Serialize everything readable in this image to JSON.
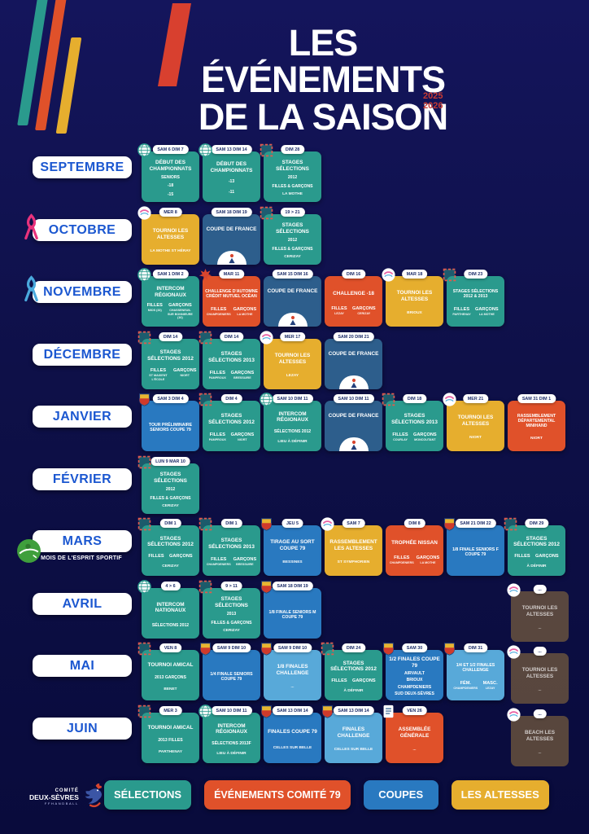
{
  "header": {
    "title_line1": "LES ÉVÉNEMENTS",
    "title_line2": "DE LA SAISON",
    "season_top": "2025",
    "season_bottom": "2026"
  },
  "colors": {
    "background": "#0e1048",
    "teal": "#2a9a8d",
    "orange": "#e0512a",
    "blue": "#2979c0",
    "darkblue": "#2d5e8c",
    "lightblue": "#58a9d9",
    "yellow": "#e6ae2e",
    "month_text": "#1b57d0",
    "badge_text": "#1d2d69",
    "accent_red": "#d8402f"
  },
  "months": [
    {
      "name": "SEPTEMBRE",
      "icon": null,
      "subtitle": null,
      "right_card": null,
      "cards": [
        {
          "color": "teal",
          "badge": "SAM 6 DIM 7",
          "logo": "intercom-globe",
          "title": "DÉBUT DES CHAMPIONNATS",
          "lines": [
            "SENIORS",
            "-18",
            "-15"
          ]
        },
        {
          "color": "teal",
          "badge": "SAM 13 DIM 14",
          "logo": "intercom-globe",
          "title": "DÉBUT DES CHAMPIONNATS",
          "lines": [
            "-13",
            "-11"
          ]
        },
        {
          "color": "teal",
          "badge": "DIM 28",
          "logo": "stage-frame",
          "title": "STAGES SÉLECTIONS",
          "lines": [
            "2012",
            "FILLES & GARÇONS"
          ],
          "footer": "LA MOTHE"
        }
      ]
    },
    {
      "name": "OCTOBRE",
      "icon": "ribbon-pink",
      "subtitle": null,
      "right_card": null,
      "cards": [
        {
          "color": "yellow",
          "badge": "MER 8",
          "logo": "altesses",
          "title": "TOURNOI LES ALTESSES",
          "footer": "LA MOTHE ST HÉRAY"
        },
        {
          "color": "darkblue",
          "badge": "SAM 18 DIM 19",
          "title": "COUPE DE FRANCE",
          "emblem": "coupe-de-france"
        },
        {
          "color": "teal",
          "badge": "19 > 21",
          "logo": "stage-frame",
          "title": "STAGES SÉLECTIONS",
          "lines": [
            "2012",
            "FILLES & GARÇONS"
          ],
          "footer": "CERIZAY"
        }
      ]
    },
    {
      "name": "NOVEMBRE",
      "icon": "ribbon-blue",
      "subtitle": null,
      "right_card": null,
      "cards": [
        {
          "color": "teal",
          "badge": "SAM 1 DIM 2",
          "logo": "intercom-globe",
          "title": "INTERCOM RÉGIONAUX",
          "cols": {
            "left": {
              "head": "FILLES",
              "sub": "MIOS (33)"
            },
            "right": {
              "head": "GARÇONS",
              "sub": "CHASSENEUIL SUR BONNIEURE (16)"
            }
          }
        },
        {
          "color": "orange",
          "badge": "MAR 11",
          "logo": "maple-leaf",
          "title": "CHALLENGE D'AUTOMNE CRÉDIT MUTUEL OCÉAN",
          "cols": {
            "left": {
              "head": "FILLES",
              "sub": "CHAMPDENIERS"
            },
            "right": {
              "head": "GARÇONS",
              "sub": "LA MOTHE"
            }
          }
        },
        {
          "color": "darkblue",
          "badge": "SAM 15 DIM 16",
          "title": "COUPE DE FRANCE",
          "emblem": "coupe-de-france"
        },
        {
          "color": "orange",
          "badge": "DIM 16",
          "title": "CHALLENGE -18",
          "cols": {
            "left": {
              "head": "FILLES",
              "sub": "LEZAY"
            },
            "right": {
              "head": "GARÇONS",
              "sub": "CERIZAY"
            }
          }
        },
        {
          "color": "yellow",
          "badge": "MAR 18",
          "logo": "altesses",
          "title": "TOURNOI LES ALTESSES",
          "footer": "BRIOUX"
        },
        {
          "color": "teal",
          "badge": "DIM 23",
          "logo": "stage-frame",
          "title": "STAGES SÉLECTIONS 2012 & 2013",
          "cols": {
            "left": {
              "head": "FILLES",
              "sub": "PARTHENAY"
            },
            "right": {
              "head": "GARÇONS",
              "sub": "LA MOTHE"
            }
          }
        }
      ]
    },
    {
      "name": "DÉCEMBRE",
      "icon": null,
      "subtitle": null,
      "right_card": null,
      "cards": [
        {
          "color": "teal",
          "badge": "DIM 14",
          "logo": "stage-frame",
          "title": "STAGES SÉLECTIONS 2012",
          "cols": {
            "left": {
              "head": "FILLES",
              "sub": "ST MAIXENT L'ÉCOLE"
            },
            "right": {
              "head": "GARÇONS",
              "sub": "NIORT"
            }
          }
        },
        {
          "color": "teal",
          "badge": "DIM 14",
          "logo": "stage-frame",
          "title": "STAGES SÉLECTIONS 2013",
          "cols": {
            "left": {
              "head": "FILLES",
              "sub": "PAMPROUX"
            },
            "right": {
              "head": "GARÇONS",
              "sub": "BRESSUIRE"
            }
          }
        },
        {
          "color": "yellow",
          "badge": "MER 17",
          "logo": "altesses",
          "title": "TOURNOI LES ALTESSES",
          "footer": "LEZAY"
        },
        {
          "color": "darkblue",
          "badge": "SAM 20 DIM 21",
          "title": "COUPE DE FRANCE",
          "emblem": "coupe-de-france"
        }
      ]
    },
    {
      "name": "JANVIER",
      "icon": null,
      "subtitle": null,
      "right_card": null,
      "cards": [
        {
          "color": "blue",
          "badge": "SAM 3 DIM 4",
          "logo": "crest",
          "title": "TOUR PRÉLIMINAIRE SENIORS COUPE 79"
        },
        {
          "color": "teal",
          "badge": "DIM 4",
          "logo": "stage-frame",
          "title": "STAGES SÉLECTIONS 2012",
          "cols": {
            "left": {
              "head": "FILLES",
              "sub": "PAMPROUX"
            },
            "right": {
              "head": "GARÇONS",
              "sub": "NIORT"
            }
          }
        },
        {
          "color": "teal",
          "badge": "SAM 10 DIM 11",
          "logo": "intercom-globe",
          "title": "INTERCOM RÉGIONAUX",
          "lines": [
            "SÉLECTIONS 2012"
          ],
          "footer": "LIEU À DÉFINIR"
        },
        {
          "color": "darkblue",
          "badge": "SAM 10 DIM 11",
          "title": "COUPE DE FRANCE",
          "emblem": "coupe-de-france"
        },
        {
          "color": "teal",
          "badge": "DIM 18",
          "logo": "stage-frame",
          "title": "STAGES SÉLECTIONS 2013",
          "cols": {
            "left": {
              "head": "FILLES",
              "sub": "COURLAY"
            },
            "right": {
              "head": "GARÇONS",
              "sub": "MONCOUTANT"
            }
          }
        },
        {
          "color": "yellow",
          "badge": "MER 21",
          "logo": "altesses",
          "title": "TOURNOI LES ALTESSES",
          "footer": "NIORT"
        },
        {
          "color": "orange",
          "badge": "SAM 31 DIM 1",
          "title": "RASSEMBLEMENT DÉPARTEMENTAL MINIHAND",
          "footer": "NIORT"
        }
      ]
    },
    {
      "name": "FÉVRIER",
      "icon": null,
      "subtitle": null,
      "right_card": null,
      "cards": [
        {
          "color": "teal",
          "badge": "LUN 9 MAR 10",
          "logo": "stage-frame",
          "title": "STAGES SÉLECTIONS",
          "lines": [
            "2012",
            "FILLES & GARÇONS"
          ],
          "footer": "CERIZAY"
        }
      ]
    },
    {
      "name": "MARS",
      "icon": "esprit-sportif",
      "subtitle": "MOIS DE L'ESPRIT SPORTIF",
      "right_card": null,
      "cards": [
        {
          "color": "teal",
          "badge": "DIM 1",
          "logo": "stage-frame",
          "title": "STAGES SÉLECTIONS 2012",
          "cols": {
            "left": {
              "head": "FILLES"
            },
            "right": {
              "head": "GARÇONS"
            }
          },
          "footer": "CERIZAY"
        },
        {
          "color": "teal",
          "badge": "DIM 1",
          "logo": "stage-frame",
          "title": "STAGES SÉLECTIONS 2013",
          "cols": {
            "left": {
              "head": "FILLES",
              "sub": "CHAMPDENIERS"
            },
            "right": {
              "head": "GARÇONS",
              "sub": "BRESSUIRE"
            }
          }
        },
        {
          "color": "blue",
          "badge": "JEU 5",
          "logo": "crest",
          "title": "TIRAGE AU SORT COUPE 79",
          "footer": "BESSINES"
        },
        {
          "color": "yellow",
          "badge": "SAM 7",
          "logo": "altesses",
          "title": "RASSEMBLEMENT LES ALTESSES",
          "footer": "ST SYMPHORIEN"
        },
        {
          "color": "orange",
          "badge": "DIM 8",
          "title": "TROPHÉE NISSAN",
          "cols": {
            "left": {
              "head": "FILLES",
              "sub": "CHAMPDENIERS"
            },
            "right": {
              "head": "GARÇONS",
              "sub": "LA MOTHE"
            }
          }
        },
        {
          "color": "blue",
          "badge": "SAM 21 DIM 22",
          "logo": "crest",
          "title": "1/8 FINALE SENIORS F COUPE 79"
        },
        {
          "color": "teal",
          "badge": "DIM 29",
          "logo": "stage-frame",
          "title": "STAGES SÉLECTIONS 2012",
          "cols": {
            "left": {
              "head": "FILLES"
            },
            "right": {
              "head": "GARÇONS"
            }
          },
          "footer": "À DÉFINIR"
        }
      ]
    },
    {
      "name": "AVRIL",
      "icon": null,
      "subtitle": null,
      "right_card": {
        "color": "muted",
        "badge": "...",
        "logo": "altesses",
        "title": "TOURNOI LES ALTESSES",
        "footer": "..."
      },
      "cards": [
        {
          "color": "teal",
          "badge": "4 > 6",
          "logo": "intercom-globe",
          "title": "INTERCOM NATIONAUX",
          "lines": [
            "SÉLECTIONS 2012"
          ]
        },
        {
          "color": "teal",
          "badge": "9 > 11",
          "logo": "stage-frame",
          "title": "STAGES SÉLECTIONS",
          "lines": [
            "2013",
            "FILLES & GARÇONS"
          ],
          "footer": "CERIZAY"
        },
        {
          "color": "blue",
          "badge": "SAM 18 DIM 19",
          "logo": "crest",
          "title": "1/8 FINALE SENIORS M COUPE 79"
        }
      ]
    },
    {
      "name": "MAI",
      "icon": null,
      "subtitle": null,
      "right_card": {
        "color": "muted",
        "badge": "...",
        "logo": "altesses",
        "title": "TOURNOI LES ALTESSES",
        "footer": "..."
      },
      "cards": [
        {
          "color": "teal",
          "badge": "VEN 8",
          "logo": "stage-frame",
          "title": "TOURNOI AMICAL",
          "lines": [
            "2013 GARÇONS"
          ],
          "footer": "BENET"
        },
        {
          "color": "blue",
          "badge": "SAM 9 DIM 10",
          "logo": "crest",
          "title": "1/4 FINALE SENIORS COUPE 79"
        },
        {
          "color": "lightblue",
          "badge": "SAM 9 DIM 10",
          "logo": "crest",
          "title": "1/8 FINALES CHALLENGE",
          "footer": "..."
        },
        {
          "color": "teal",
          "badge": "DIM 24",
          "logo": "stage-frame",
          "title": "STAGES SÉLECTIONS 2012",
          "cols": {
            "left": {
              "head": "FILLES"
            },
            "right": {
              "head": "GARÇONS"
            }
          },
          "footer": "À DÉFINIR"
        },
        {
          "color": "blue",
          "badge": "SAM 30",
          "logo": "crest",
          "title": "1/2 FINALES COUPE 79",
          "lines": [
            "AIRVAULT",
            "BRIOUX",
            "CHAMPDENIERS",
            "SUD DEUX-SÈVRES"
          ]
        },
        {
          "color": "lightblue",
          "badge": "DIM 31",
          "logo": "crest",
          "title": "1/4 ET 1/2 FINALES CHALLENGE",
          "cols": {
            "left": {
              "head": "FÉM.",
              "sub": "CHAMPDENIERS"
            },
            "right": {
              "head": "MASC.",
              "sub": "LEZAY"
            }
          }
        }
      ]
    },
    {
      "name": "JUIN",
      "icon": null,
      "subtitle": null,
      "right_card": {
        "color": "muted",
        "badge": "...",
        "logo": "altesses",
        "title": "BEACH LES ALTESSES",
        "footer": "..."
      },
      "cards": [
        {
          "color": "teal",
          "badge": "MER 3",
          "logo": "stage-frame",
          "title": "TOURNOI AMICAL",
          "lines": [
            "2013 FILLES"
          ],
          "footer": "PARTHENAY"
        },
        {
          "color": "teal",
          "badge": "SAM 10 DIM 11",
          "logo": "intercom-globe",
          "title": "INTERCOM RÉGIONAUX",
          "lines": [
            "SÉLECTIONS 2013F"
          ],
          "footer": "LIEU À DÉFINIR"
        },
        {
          "color": "blue",
          "badge": "SAM 13 DIM 14",
          "logo": "crest",
          "title": "FINALES COUPE 79",
          "footer": "CELLES SUR BELLE"
        },
        {
          "color": "lightblue",
          "badge": "SAM 13 DIM 14",
          "logo": "crest",
          "title": "FINALES CHALLENGE",
          "footer": "CELLES SUR BELLE"
        },
        {
          "color": "orange",
          "badge": "VEN 26",
          "logo": "document",
          "title": "ASSEMBLÉE GÉNÉRALE",
          "footer": "..."
        }
      ]
    }
  ],
  "legend": {
    "items": [
      {
        "label": "SÉLECTIONS",
        "color_key": "teal"
      },
      {
        "label": "ÉVÉNEMENTS COMITÉ 79",
        "color_key": "orange"
      },
      {
        "label": "COUPES",
        "color_key": "blue"
      },
      {
        "label": "LES ALTESSES",
        "color_key": "yellow"
      }
    ]
  },
  "brand": {
    "org_line1": "COMITÉ",
    "org_line2": "DEUX-SÈVRES",
    "org_line3": "FFHANDBALL"
  }
}
